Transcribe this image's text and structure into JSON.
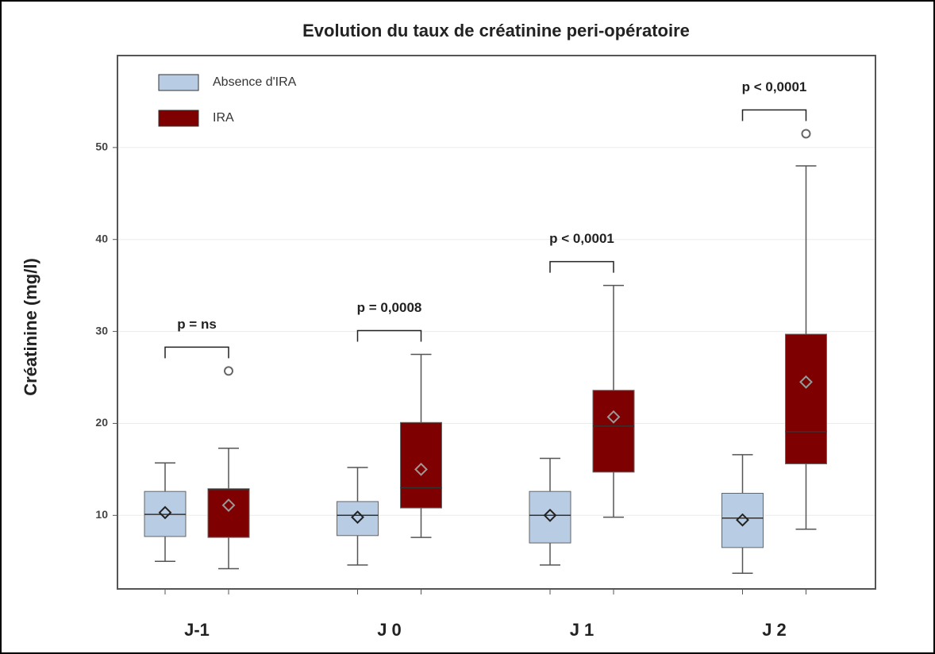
{
  "chart_data": {
    "type": "box",
    "title": "Evolution du taux de créatinine peri-opératoire",
    "y_label": "Créatinine (mg/l)",
    "categories": [
      "J-1",
      "J 0",
      "J 1",
      "J 2"
    ],
    "ylim": [
      2,
      60
    ],
    "yticks": [
      10,
      20,
      30,
      40,
      50
    ],
    "grid": true,
    "legend": "top-left",
    "series": [
      {
        "name": "Absence d'IRA",
        "color": "#b8cce4",
        "boxes": [
          {
            "min": 5,
            "q1": 7.7,
            "median": 10.1,
            "q3": 12.6,
            "max": 15.7,
            "mean": 10.3,
            "outliers": []
          },
          {
            "min": 4.6,
            "q1": 7.8,
            "median": 10.0,
            "q3": 11.5,
            "max": 15.2,
            "mean": 9.8,
            "outliers": []
          },
          {
            "min": 4.6,
            "q1": 7.0,
            "median": 10.0,
            "q3": 12.6,
            "max": 16.2,
            "mean": 10.0,
            "outliers": []
          },
          {
            "min": 3.7,
            "q1": 6.5,
            "median": 9.7,
            "q3": 12.4,
            "max": 16.6,
            "mean": 9.5,
            "outliers": []
          }
        ]
      },
      {
        "name": "IRA",
        "color": "#7f0000",
        "boxes": [
          {
            "min": 4.2,
            "q1": 7.6,
            "median": 12.8,
            "q3": 12.9,
            "max": 17.3,
            "mean": 11.1,
            "outliers": [
              25.7
            ]
          },
          {
            "min": 7.6,
            "q1": 10.8,
            "median": 13.0,
            "q3": 20.1,
            "max": 27.5,
            "mean": 15.0,
            "outliers": []
          },
          {
            "min": 9.8,
            "q1": 14.7,
            "median": 19.7,
            "q3": 23.6,
            "max": 35.0,
            "mean": 20.7,
            "outliers": []
          },
          {
            "min": 8.5,
            "q1": 15.6,
            "median": 19.1,
            "q3": 29.7,
            "max": 48.0,
            "mean": 24.5,
            "outliers": [
              51.5
            ]
          }
        ]
      }
    ],
    "annotations": [
      "p = ns",
      "p = 0,0008",
      "p < 0,0001",
      "p < 0,0001"
    ]
  }
}
